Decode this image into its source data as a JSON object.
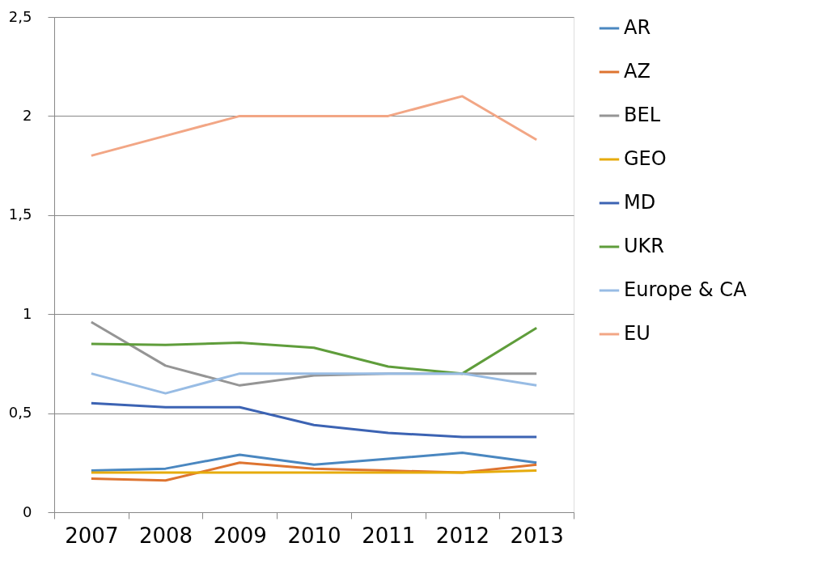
{
  "chart_data": {
    "type": "line",
    "categories": [
      "2007",
      "2008",
      "2009",
      "2010",
      "2011",
      "2012",
      "2013"
    ],
    "ylim": [
      0,
      2.5
    ],
    "yticks": [
      0,
      {
        "value": 0.5,
        "label": "0,5"
      },
      1,
      {
        "value": 1.5,
        "label": "1,5"
      },
      2,
      {
        "value": 2.5,
        "label": "2,5"
      }
    ],
    "grid": "y",
    "legend": "right",
    "marker": "none",
    "line_style": "solid",
    "series": [
      {
        "name": "AR",
        "color": "#4a87c0",
        "values": [
          0.21,
          0.22,
          0.29,
          0.24,
          0.27,
          0.3,
          0.25
        ]
      },
      {
        "name": "AZ",
        "color": "#de7430",
        "values": [
          0.17,
          0.16,
          0.25,
          0.22,
          0.21,
          0.2,
          0.24
        ]
      },
      {
        "name": "BEL",
        "color": "#959595",
        "values": [
          0.96,
          0.74,
          0.64,
          0.69,
          0.7,
          0.7,
          0.7
        ]
      },
      {
        "name": "GEO",
        "color": "#e6ab0c",
        "values": [
          0.2,
          0.2,
          0.2,
          0.2,
          0.2,
          0.2,
          0.21
        ]
      },
      {
        "name": "MD",
        "color": "#3c63b3",
        "values": [
          0.55,
          0.53,
          0.53,
          0.44,
          0.4,
          0.38,
          0.38
        ]
      },
      {
        "name": "UKR",
        "color": "#5f9d3b",
        "values": [
          0.85,
          0.845,
          0.856,
          0.83,
          0.735,
          0.7,
          0.93
        ]
      },
      {
        "name": "Europe & CA",
        "color": "#98bce4",
        "values": [
          0.7,
          0.6,
          0.7,
          0.7,
          0.7,
          0.7,
          0.64
        ]
      },
      {
        "name": "EU",
        "color": "#f2a685",
        "values": [
          1.8,
          1.9,
          2.0,
          2.0,
          2.0,
          2.1,
          1.88
        ]
      }
    ]
  }
}
